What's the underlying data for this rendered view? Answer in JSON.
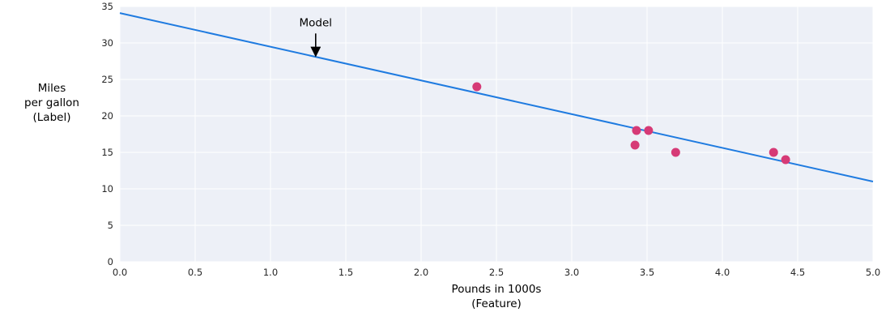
{
  "chart_data": {
    "type": "scatter",
    "title": "",
    "xlabel_lines": [
      "Pounds in 1000s",
      "(Feature)"
    ],
    "ylabel_lines": [
      "Miles",
      "per gallon",
      "(Label)"
    ],
    "xlim": [
      0,
      5
    ],
    "ylim": [
      0,
      35
    ],
    "xticks": [
      0,
      0.5,
      1,
      1.5,
      2,
      2.5,
      3,
      3.5,
      4,
      4.5,
      5
    ],
    "xtick_labels": [
      "0.0",
      "0.5",
      "1.0",
      "1.5",
      "2.0",
      "2.5",
      "3.0",
      "3.5",
      "4.0",
      "4.5",
      "5.0"
    ],
    "yticks": [
      0,
      5,
      10,
      15,
      20,
      25,
      30,
      35
    ],
    "ytick_labels": [
      "0",
      "5",
      "10",
      "15",
      "20",
      "25",
      "30",
      "35"
    ],
    "grid": true,
    "series": [
      {
        "name": "model-line",
        "type": "line",
        "color": "#1f7be0",
        "points": [
          {
            "x": 0,
            "y": 34.1
          },
          {
            "x": 5,
            "y": 11.0
          }
        ]
      },
      {
        "name": "data-points",
        "type": "scatter",
        "color": "#d63a76",
        "points": [
          {
            "x": 2.37,
            "y": 24
          },
          {
            "x": 3.43,
            "y": 18
          },
          {
            "x": 3.51,
            "y": 18
          },
          {
            "x": 3.42,
            "y": 16
          },
          {
            "x": 3.69,
            "y": 15
          },
          {
            "x": 4.34,
            "y": 15
          },
          {
            "x": 4.42,
            "y": 14
          }
        ]
      }
    ],
    "annotation": {
      "text": "Model",
      "x": 1.3,
      "text_y": 32.3,
      "arrow_from_y": 31.3,
      "arrow_to_y": 28.2,
      "color": "#000000"
    },
    "colors": {
      "plot_background": "#edf0f7",
      "grid": "#ffffff",
      "tick_label": "#262626",
      "axis_title": "#000000"
    }
  }
}
